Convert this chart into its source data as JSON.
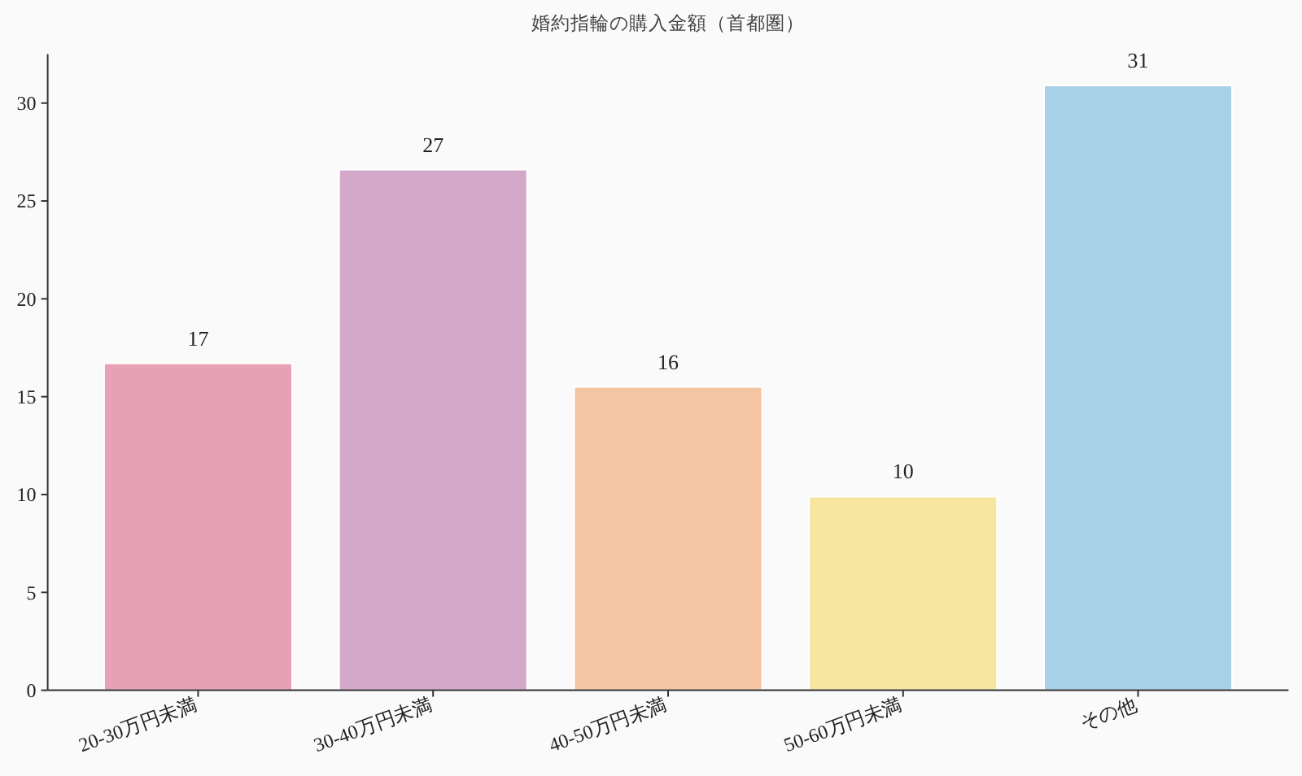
{
  "chart_data": {
    "type": "bar",
    "title": "婚約指輪の購入金額（首都圏）",
    "categories": [
      "20-30万円未満",
      "30-40万円未満",
      "40-50万円未満",
      "50-60万円未満",
      "その他"
    ],
    "values": [
      16.7,
      26.6,
      15.5,
      9.9,
      30.9
    ],
    "colors": [
      "#e8a0b4",
      "#d4a8c8",
      "#f5c5a3",
      "#f7e6a0",
      "#a8d0e6"
    ],
    "value_labels": [
      "17",
      "27",
      "16",
      "10",
      "31"
    ],
    "ylim": [
      0,
      32.5
    ],
    "yticks": [
      0,
      5,
      10,
      15,
      20,
      25,
      30
    ]
  }
}
